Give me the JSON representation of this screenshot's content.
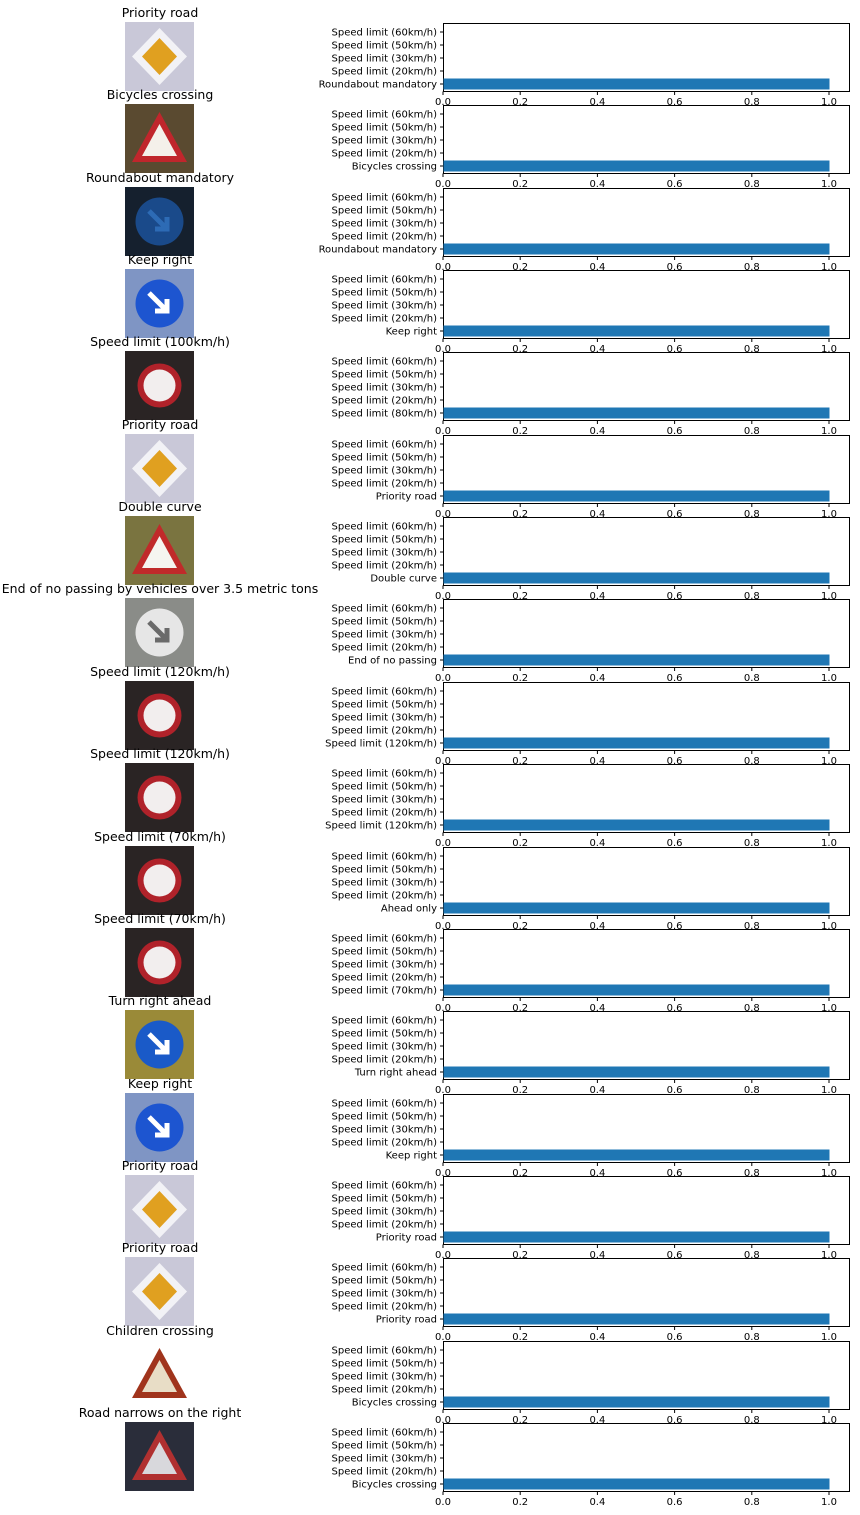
{
  "colors": {
    "bar": "#1f77b4",
    "axis": "#000000"
  },
  "chart_data": [
    {
      "type": "bar",
      "orientation": "horizontal",
      "title": "Priority road",
      "image_icon": "priority-road-sign-photo",
      "categories": [
        "Speed limit (60km/h)",
        "Speed limit (50km/h)",
        "Speed limit (30km/h)",
        "Speed limit (20km/h)",
        "Roundabout mandatory"
      ],
      "values": [
        0,
        0,
        0,
        0,
        1.0
      ],
      "xlim": [
        0,
        1.05
      ],
      "xticks": [
        "0.0",
        "0.2",
        "0.4",
        "0.6",
        "0.8",
        "1.0"
      ]
    },
    {
      "type": "bar",
      "orientation": "horizontal",
      "title": "Bicycles crossing",
      "image_icon": "bicycles-crossing-sign-photo",
      "categories": [
        "Speed limit (60km/h)",
        "Speed limit (50km/h)",
        "Speed limit (30km/h)",
        "Speed limit (20km/h)",
        "Bicycles crossing"
      ],
      "values": [
        0,
        0,
        0,
        0,
        1.0
      ],
      "xlim": [
        0,
        1.05
      ],
      "xticks": [
        "0.0",
        "0.2",
        "0.4",
        "0.6",
        "0.8",
        "1.0"
      ]
    },
    {
      "type": "bar",
      "orientation": "horizontal",
      "title": "Roundabout mandatory",
      "image_icon": "roundabout-sign-photo",
      "categories": [
        "Speed limit (60km/h)",
        "Speed limit (50km/h)",
        "Speed limit (30km/h)",
        "Speed limit (20km/h)",
        "Roundabout mandatory"
      ],
      "values": [
        0,
        0,
        0,
        0,
        1.0
      ],
      "xlim": [
        0,
        1.05
      ],
      "xticks": [
        "0.0",
        "0.2",
        "0.4",
        "0.6",
        "0.8",
        "1.0"
      ]
    },
    {
      "type": "bar",
      "orientation": "horizontal",
      "title": "Keep right",
      "image_icon": "keep-right-sign-photo",
      "categories": [
        "Speed limit (60km/h)",
        "Speed limit (50km/h)",
        "Speed limit (30km/h)",
        "Speed limit (20km/h)",
        "Keep right"
      ],
      "values": [
        0,
        0,
        0,
        0,
        1.0
      ],
      "xlim": [
        0,
        1.05
      ],
      "xticks": [
        "0.0",
        "0.2",
        "0.4",
        "0.6",
        "0.8",
        "1.0"
      ]
    },
    {
      "type": "bar",
      "orientation": "horizontal",
      "title": "Speed limit (100km/h)",
      "image_icon": "speed-limit-sign-photo",
      "categories": [
        "Speed limit (60km/h)",
        "Speed limit (50km/h)",
        "Speed limit (30km/h)",
        "Speed limit (20km/h)",
        "Speed limit (80km/h)"
      ],
      "values": [
        0,
        0,
        0,
        0,
        1.0
      ],
      "xlim": [
        0,
        1.05
      ],
      "xticks": [
        "0.0",
        "0.2",
        "0.4",
        "0.6",
        "0.8",
        "1.0"
      ]
    },
    {
      "type": "bar",
      "orientation": "horizontal",
      "title": "Priority road",
      "image_icon": "priority-road-sign-photo",
      "categories": [
        "Speed limit (60km/h)",
        "Speed limit (50km/h)",
        "Speed limit (30km/h)",
        "Speed limit (20km/h)",
        "Priority road"
      ],
      "values": [
        0,
        0,
        0,
        0,
        1.0
      ],
      "xlim": [
        0,
        1.05
      ],
      "xticks": [
        "0.0",
        "0.2",
        "0.4",
        "0.6",
        "0.8",
        "1.0"
      ]
    },
    {
      "type": "bar",
      "orientation": "horizontal",
      "title": "Double curve",
      "image_icon": "double-curve-sign-photo",
      "categories": [
        "Speed limit (60km/h)",
        "Speed limit (50km/h)",
        "Speed limit (30km/h)",
        "Speed limit (20km/h)",
        "Double curve"
      ],
      "values": [
        0,
        0,
        0,
        0,
        1.0
      ],
      "xlim": [
        0,
        1.05
      ],
      "xticks": [
        "0.0",
        "0.2",
        "0.4",
        "0.6",
        "0.8",
        "1.0"
      ]
    },
    {
      "type": "bar",
      "orientation": "horizontal",
      "title": "End of no passing by vehicles over 3.5 metric tons",
      "image_icon": "end-of-no-passing-sign-photo",
      "categories": [
        "Speed limit (60km/h)",
        "Speed limit (50km/h)",
        "Speed limit (30km/h)",
        "Speed limit (20km/h)",
        "End of no passing"
      ],
      "values": [
        0,
        0,
        0,
        0,
        1.0
      ],
      "xlim": [
        0,
        1.05
      ],
      "xticks": [
        "0.0",
        "0.2",
        "0.4",
        "0.6",
        "0.8",
        "1.0"
      ]
    },
    {
      "type": "bar",
      "orientation": "horizontal",
      "title": "Speed limit (120km/h)",
      "image_icon": "speed-limit-sign-photo",
      "categories": [
        "Speed limit (60km/h)",
        "Speed limit (50km/h)",
        "Speed limit (30km/h)",
        "Speed limit (20km/h)",
        "Speed limit (120km/h)"
      ],
      "values": [
        0,
        0,
        0,
        0,
        1.0
      ],
      "xlim": [
        0,
        1.05
      ],
      "xticks": [
        "0.0",
        "0.2",
        "0.4",
        "0.6",
        "0.8",
        "1.0"
      ]
    },
    {
      "type": "bar",
      "orientation": "horizontal",
      "title": "Speed limit (120km/h)",
      "image_icon": "speed-limit-sign-photo",
      "categories": [
        "Speed limit (60km/h)",
        "Speed limit (50km/h)",
        "Speed limit (30km/h)",
        "Speed limit (20km/h)",
        "Speed limit (120km/h)"
      ],
      "values": [
        0,
        0,
        0,
        0,
        1.0
      ],
      "xlim": [
        0,
        1.05
      ],
      "xticks": [
        "0.0",
        "0.2",
        "0.4",
        "0.6",
        "0.8",
        "1.0"
      ]
    },
    {
      "type": "bar",
      "orientation": "horizontal",
      "title": "Speed limit (70km/h)",
      "image_icon": "speed-limit-sign-photo",
      "categories": [
        "Speed limit (60km/h)",
        "Speed limit (50km/h)",
        "Speed limit (30km/h)",
        "Speed limit (20km/h)",
        "Ahead only"
      ],
      "values": [
        0,
        0,
        0,
        0,
        1.0
      ],
      "xlim": [
        0,
        1.05
      ],
      "xticks": [
        "0.0",
        "0.2",
        "0.4",
        "0.6",
        "0.8",
        "1.0"
      ]
    },
    {
      "type": "bar",
      "orientation": "horizontal",
      "title": "Speed limit (70km/h)",
      "image_icon": "speed-limit-sign-photo",
      "categories": [
        "Speed limit (60km/h)",
        "Speed limit (50km/h)",
        "Speed limit (30km/h)",
        "Speed limit (20km/h)",
        "Speed limit (70km/h)"
      ],
      "values": [
        0,
        0,
        0,
        0,
        1.0
      ],
      "xlim": [
        0,
        1.05
      ],
      "xticks": [
        "0.0",
        "0.2",
        "0.4",
        "0.6",
        "0.8",
        "1.0"
      ]
    },
    {
      "type": "bar",
      "orientation": "horizontal",
      "title": "Turn right ahead",
      "image_icon": "turn-right-ahead-sign-photo",
      "categories": [
        "Speed limit (60km/h)",
        "Speed limit (50km/h)",
        "Speed limit (30km/h)",
        "Speed limit (20km/h)",
        "Turn right ahead"
      ],
      "values": [
        0,
        0,
        0,
        0,
        1.0
      ],
      "xlim": [
        0,
        1.05
      ],
      "xticks": [
        "0.0",
        "0.2",
        "0.4",
        "0.6",
        "0.8",
        "1.0"
      ]
    },
    {
      "type": "bar",
      "orientation": "horizontal",
      "title": "Keep right",
      "image_icon": "keep-right-sign-photo",
      "categories": [
        "Speed limit (60km/h)",
        "Speed limit (50km/h)",
        "Speed limit (30km/h)",
        "Speed limit (20km/h)",
        "Keep right"
      ],
      "values": [
        0,
        0,
        0,
        0,
        1.0
      ],
      "xlim": [
        0,
        1.05
      ],
      "xticks": [
        "0.0",
        "0.2",
        "0.4",
        "0.6",
        "0.8",
        "1.0"
      ]
    },
    {
      "type": "bar",
      "orientation": "horizontal",
      "title": "Priority road",
      "image_icon": "priority-road-sign-photo",
      "categories": [
        "Speed limit (60km/h)",
        "Speed limit (50km/h)",
        "Speed limit (30km/h)",
        "Speed limit (20km/h)",
        "Priority road"
      ],
      "values": [
        0,
        0,
        0,
        0,
        1.0
      ],
      "xlim": [
        0,
        1.05
      ],
      "xticks": [
        "0.0",
        "0.2",
        "0.4",
        "0.6",
        "0.8",
        "1.0"
      ]
    },
    {
      "type": "bar",
      "orientation": "horizontal",
      "title": "Priority road",
      "image_icon": "priority-road-sign-photo",
      "categories": [
        "Speed limit (60km/h)",
        "Speed limit (50km/h)",
        "Speed limit (30km/h)",
        "Speed limit (20km/h)",
        "Priority road"
      ],
      "values": [
        0,
        0,
        0,
        0,
        1.0
      ],
      "xlim": [
        0,
        1.05
      ],
      "xticks": [
        "0.0",
        "0.2",
        "0.4",
        "0.6",
        "0.8",
        "1.0"
      ]
    },
    {
      "type": "bar",
      "orientation": "horizontal",
      "title": "Children crossing",
      "image_icon": "children-crossing-sign-photo",
      "categories": [
        "Speed limit (60km/h)",
        "Speed limit (50km/h)",
        "Speed limit (30km/h)",
        "Speed limit (20km/h)",
        "Bicycles crossing"
      ],
      "values": [
        0,
        0,
        0,
        0,
        1.0
      ],
      "xlim": [
        0,
        1.05
      ],
      "xticks": [
        "0.0",
        "0.2",
        "0.4",
        "0.6",
        "0.8",
        "1.0"
      ]
    },
    {
      "type": "bar",
      "orientation": "horizontal",
      "title": "Road narrows on the right",
      "image_icon": "road-narrows-sign-photo",
      "categories": [
        "Speed limit (60km/h)",
        "Speed limit (50km/h)",
        "Speed limit (30km/h)",
        "Speed limit (20km/h)",
        "Bicycles crossing"
      ],
      "values": [
        0,
        0,
        0,
        0,
        1.0
      ],
      "xlim": [
        0,
        1.05
      ],
      "xticks": [
        "0.0",
        "0.2",
        "0.4",
        "0.6",
        "0.8",
        "1.0"
      ]
    }
  ]
}
